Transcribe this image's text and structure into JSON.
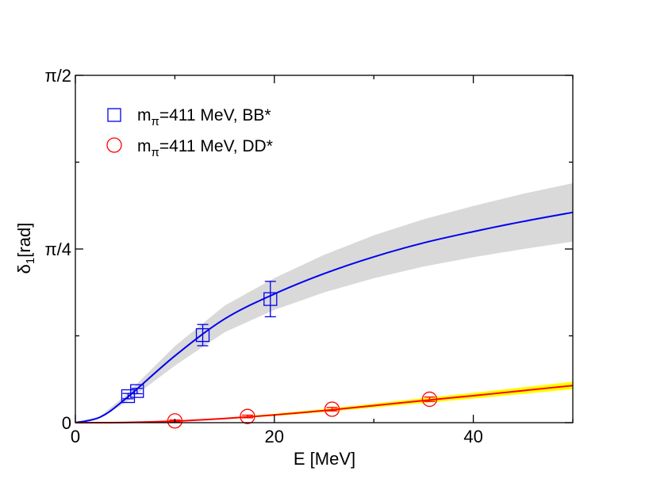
{
  "chart_data": {
    "type": "line",
    "title": "",
    "xlabel": "E [MeV]",
    "ylabel": {
      "main": "δ",
      "sub": "1",
      "rest": "[rad]"
    },
    "xlim": [
      0,
      50
    ],
    "ylim": [
      0,
      1.5708
    ],
    "x_ticks": [
      {
        "value": 0,
        "label": "0"
      },
      {
        "value": 20,
        "label": "20"
      },
      {
        "value": 40,
        "label": "40"
      }
    ],
    "y_ticks": [
      {
        "value": 0,
        "label": "0"
      },
      {
        "value": 0.7854,
        "label": "π/4"
      },
      {
        "value": 1.5708,
        "label": "π/2"
      }
    ],
    "grid": false,
    "legend_position": "top-left",
    "series": [
      {
        "name": "BB*",
        "legend": {
          "pre": "m",
          "sub": "π",
          "post": "=411 MeV, BB*"
        },
        "color": "#0000ee",
        "marker": "square",
        "band_color": "#d9d9d9",
        "points": [
          {
            "x": 5.3,
            "y": 0.12,
            "err": 0.012
          },
          {
            "x": 6.2,
            "y": 0.143,
            "err": 0.012
          },
          {
            "x": 12.8,
            "y": 0.396,
            "err": 0.048
          },
          {
            "x": 19.6,
            "y": 0.559,
            "err": 0.08
          }
        ],
        "curve": [
          {
            "x": 0,
            "y": 0.0,
            "band": 0.0
          },
          {
            "x": 2.5,
            "y": 0.025,
            "band": 0.004
          },
          {
            "x": 5,
            "y": 0.106,
            "band": 0.017
          },
          {
            "x": 10,
            "y": 0.302,
            "band": 0.044
          },
          {
            "x": 15,
            "y": 0.469,
            "band": 0.06
          },
          {
            "x": 20,
            "y": 0.582,
            "band": 0.072
          },
          {
            "x": 25,
            "y": 0.674,
            "band": 0.085
          },
          {
            "x": 30,
            "y": 0.75,
            "band": 0.097
          },
          {
            "x": 35,
            "y": 0.813,
            "band": 0.107
          },
          {
            "x": 40,
            "y": 0.864,
            "band": 0.116
          },
          {
            "x": 45,
            "y": 0.91,
            "band": 0.125
          },
          {
            "x": 50,
            "y": 0.951,
            "band": 0.132
          }
        ]
      },
      {
        "name": "DD*",
        "legend": {
          "pre": "m",
          "sub": "π",
          "post": "=411 MeV, DD*"
        },
        "color": "#ff0000",
        "marker": "circle",
        "band_color": "#ffff00",
        "points": [
          {
            "x": 10.0,
            "y": 0.008,
            "err": 0.004
          },
          {
            "x": 17.3,
            "y": 0.028,
            "err": 0.006
          },
          {
            "x": 25.8,
            "y": 0.061,
            "err": 0.008
          },
          {
            "x": 35.6,
            "y": 0.106,
            "err": 0.01
          }
        ],
        "curve": [
          {
            "x": 0,
            "y": 0.0,
            "band": 0.0
          },
          {
            "x": 5,
            "y": 0.001,
            "band": 0.001
          },
          {
            "x": 10,
            "y": 0.007,
            "band": 0.002
          },
          {
            "x": 15,
            "y": 0.019,
            "band": 0.003
          },
          {
            "x": 20,
            "y": 0.035,
            "band": 0.005
          },
          {
            "x": 25,
            "y": 0.055,
            "band": 0.007
          },
          {
            "x": 30,
            "y": 0.077,
            "band": 0.009
          },
          {
            "x": 35,
            "y": 0.1,
            "band": 0.011
          },
          {
            "x": 40,
            "y": 0.122,
            "band": 0.013
          },
          {
            "x": 45,
            "y": 0.145,
            "band": 0.015
          },
          {
            "x": 50,
            "y": 0.168,
            "band": 0.017
          }
        ]
      }
    ]
  }
}
